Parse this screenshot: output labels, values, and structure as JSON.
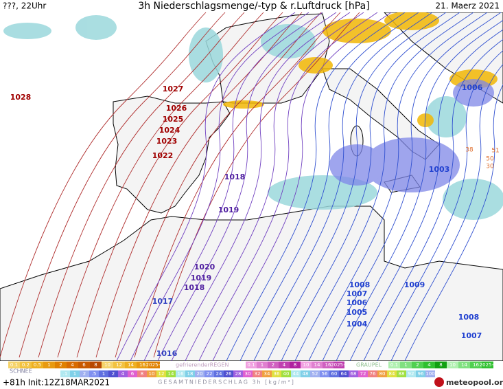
{
  "header": {
    "left": "???, 22Uhr",
    "title": "3h Niederschlagsmenge/-typ & r.Luftdruck [hPa]",
    "date": "21. Maerz 2021"
  },
  "isobar_labels": [
    "1027",
    "1028",
    "1026",
    "1025",
    "1024",
    "1023",
    "1022",
    "1018",
    "1019",
    "1020",
    "1019",
    "1018",
    "1017",
    "1016",
    "1006",
    "1003",
    "1008",
    "1007",
    "1006",
    "1005",
    "1004",
    "1009",
    "1008",
    "1007"
  ],
  "orange_labels": [
    "38",
    "51",
    "50",
    "30"
  ],
  "legend": {
    "rain": [
      "0.1",
      "0.2",
      "0.5",
      "1",
      "2",
      "4",
      "6",
      "8",
      "10",
      "12",
      "14",
      "16",
      "2025+"
    ],
    "freezing_rain_label": "gefrierenderREGEN",
    "freezing_rain": [
      "0.1",
      "1",
      "2",
      "4",
      "8",
      "10",
      "14",
      "16",
      "2025+"
    ],
    "graupel_label": "GRAUPEL",
    "graupel": [
      "0.1",
      "1",
      "2",
      "4",
      "8",
      "10",
      "14",
      "16",
      "2025+"
    ],
    "snow_label": "SCHNEE",
    "total": [
      ".1",
      "1",
      "2",
      ".5",
      "1",
      "2",
      "4",
      "6",
      "8",
      "10",
      "12",
      "14",
      "16",
      "18",
      "20",
      "22",
      "24",
      "26",
      "28",
      "30",
      "32",
      "34",
      "36",
      "40",
      "44",
      "48",
      "52",
      "56",
      "60",
      "64",
      "68",
      "72",
      "76",
      "80",
      "84",
      "88",
      "92",
      "96",
      "100"
    ],
    "total_label": "GESAMTNIEDERSCHLAG 3h [kg/m²]"
  },
  "footer": {
    "run": "+81h Init:12Z18MAR2021",
    "brand": "meteopool.org"
  }
}
